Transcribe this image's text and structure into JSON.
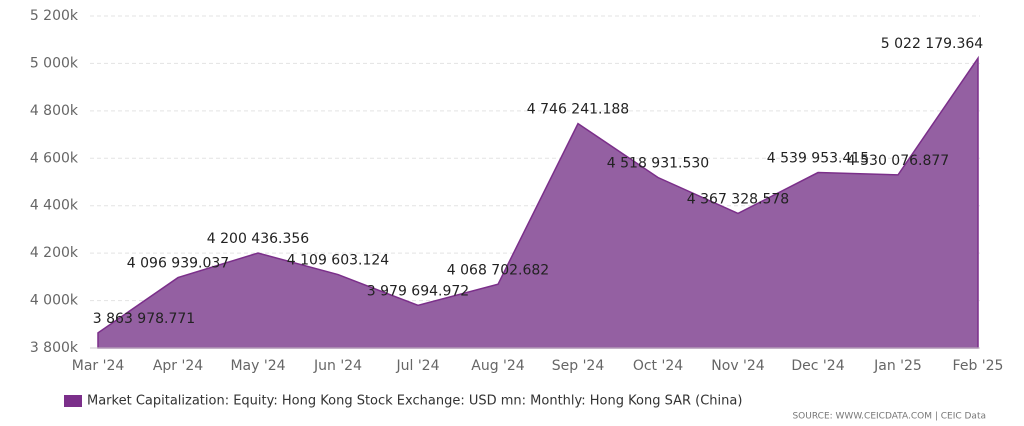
{
  "chart_data": {
    "type": "area",
    "categories": [
      "Mar '24",
      "Apr '24",
      "May '24",
      "Jun '24",
      "Jul '24",
      "Aug '24",
      "Sep '24",
      "Oct '24",
      "Nov '24",
      "Dec '24",
      "Jan '25",
      "Feb '25"
    ],
    "series": [
      {
        "name": "Market Capitalization: Equity: Hong Kong Stock Exchange: USD mn: Monthly: Hong Kong SAR (China)",
        "color": "#7b2f8a",
        "fill": "#9460a2",
        "values": [
          3863978.771,
          4096939.037,
          4200436.356,
          4109603.124,
          3979694.972,
          4068702.682,
          4746241.188,
          4518931.53,
          4367328.578,
          4539953.415,
          4530076.877,
          5022179.364
        ],
        "value_labels": [
          "3 863 978.771",
          "4 096 939.037",
          "4 200 436.356",
          "4 109 603.124",
          "3 979 694.972",
          "4 068 702.682",
          "4 746 241.188",
          "4 518 931.530",
          "4 367 328.578",
          "4 539 953.415",
          "4 530 076.877",
          "5 022 179.364"
        ]
      }
    ],
    "ylim": [
      3800000,
      5200000
    ],
    "yticks": [
      {
        "value": 3800000,
        "label": "3 800k"
      },
      {
        "value": 4000000,
        "label": "4 000k"
      },
      {
        "value": 4200000,
        "label": "4 200k"
      },
      {
        "value": 4400000,
        "label": "4 400k"
      },
      {
        "value": 4600000,
        "label": "4 600k"
      },
      {
        "value": 4800000,
        "label": "4 800k"
      },
      {
        "value": 5000000,
        "label": "5 000k"
      },
      {
        "value": 5200000,
        "label": "5 200k"
      }
    ],
    "grid": true,
    "source": "SOURCE: WWW.CEICDATA.COM | CEIC Data"
  }
}
